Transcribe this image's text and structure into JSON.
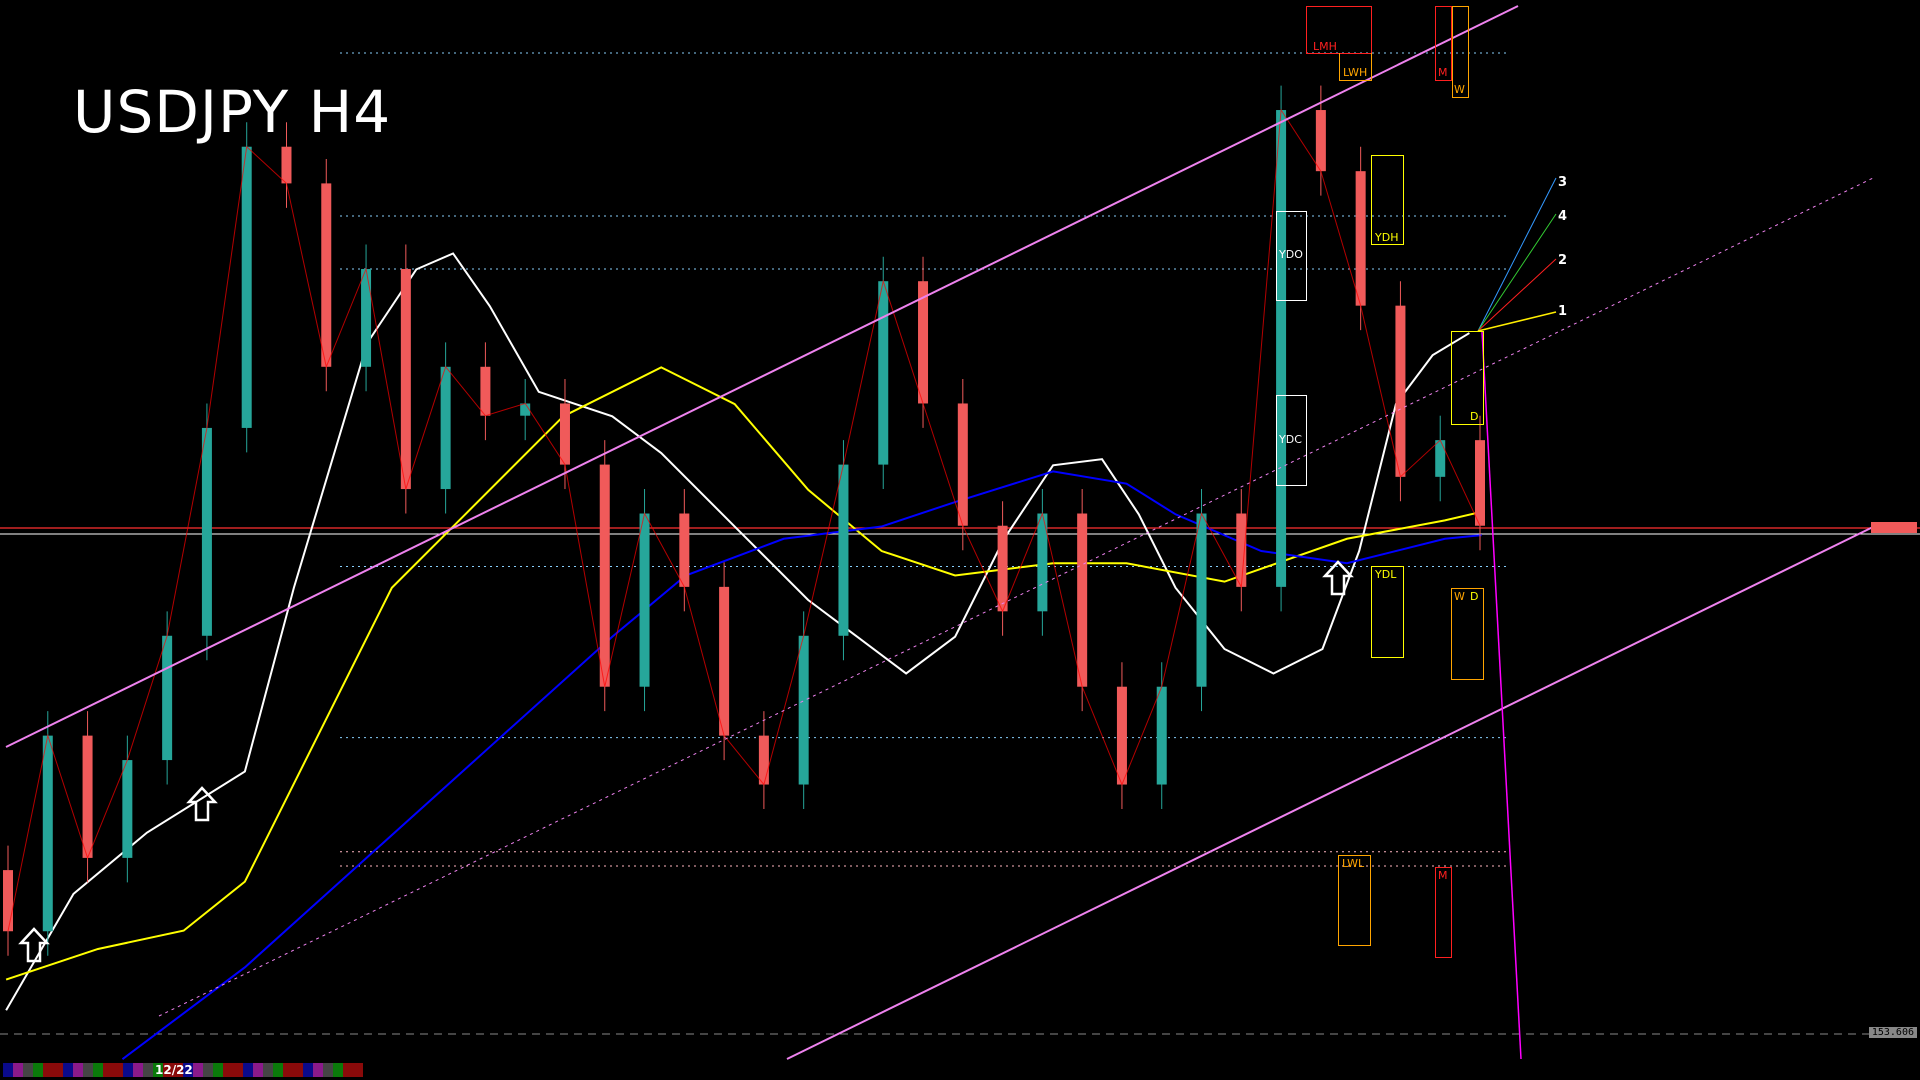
{
  "header": {
    "title": "USDJPY H4"
  },
  "colors": {
    "background": "#000000",
    "bull_candle": "#26a69a",
    "bear_candle": "#f05a5a",
    "channel": "#ee82ee",
    "ma_fast": "#ffffff",
    "ma_mid": "#ffff00",
    "ma_slow": "#0000ff",
    "band": "#ff0000",
    "osc": "#00cc00"
  },
  "chart_data": {
    "type": "candlestick",
    "symbol": "USDJPY",
    "timeframe": "H4",
    "ylim": [
      153.4,
      158.7
    ],
    "closes": [
      154.13,
      155.09,
      154.49,
      154.97,
      155.58,
      156.6,
      157.98,
      157.8,
      156.9,
      157.38,
      156.3,
      156.9,
      156.66,
      156.72,
      156.42,
      155.33,
      156.18,
      155.82,
      155.09,
      154.85,
      155.58,
      156.42,
      157.32,
      156.72,
      156.12,
      155.7,
      156.18,
      155.33,
      154.85,
      155.33,
      156.18,
      155.82,
      158.16,
      157.86,
      157.2,
      156.36,
      156.54,
      156.12
    ],
    "current_price": 156.1,
    "level_lines": [
      158.44,
      157.64,
      157.38,
      155.92,
      155.08,
      154.52,
      154.45
    ],
    "reference_line": {
      "label": "153.606",
      "value": 153.606
    },
    "fib_fan_labels": [
      "3",
      "4",
      "2",
      "1"
    ],
    "levels": {
      "lmh": "LMH",
      "lwh": "LWH",
      "m_top": "M",
      "w_top": "W",
      "ydo": "YDO",
      "ydh": "YDH",
      "ydc": "YDC",
      "ydl": "YDL",
      "d_top": "D",
      "w_bottom": "W",
      "d_bottom": "D",
      "lwl": "LWL",
      "m_bottom": "M"
    }
  },
  "footer": {
    "date_label": "12/22"
  }
}
